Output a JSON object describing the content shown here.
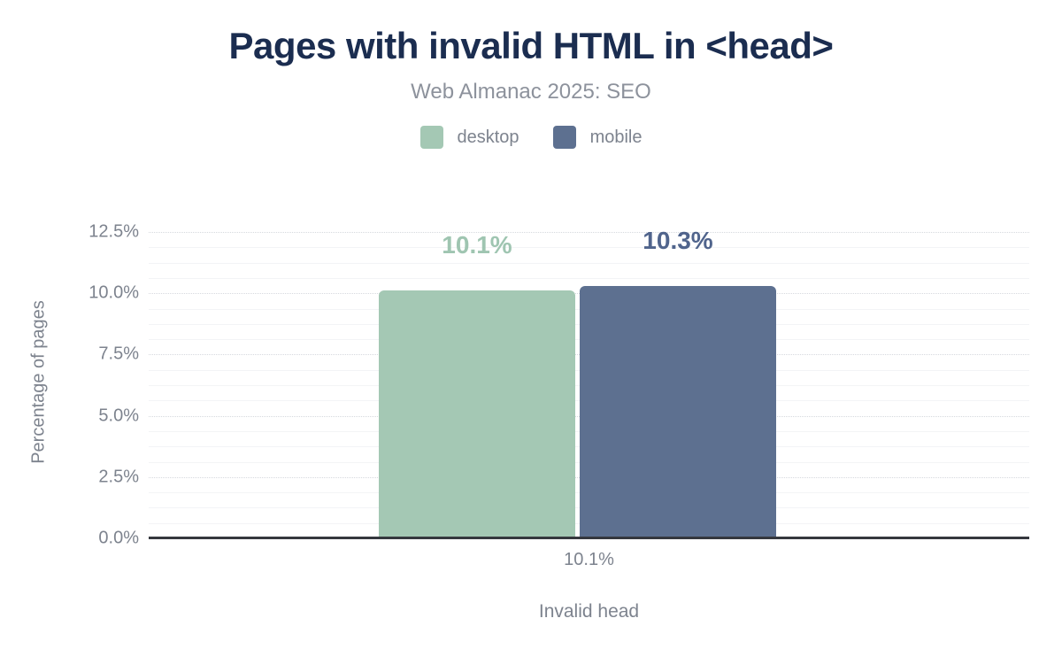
{
  "chart_data": {
    "type": "bar",
    "title": "Pages with invalid HTML in <head>",
    "subtitle": "Web Almanac 2025: SEO",
    "categories": [
      "Invalid head"
    ],
    "series": [
      {
        "name": "desktop",
        "values": [
          10.1
        ],
        "value_labels": [
          "10.1%"
        ],
        "color": "#a4c8b4",
        "label_color": "#9fc5b1"
      },
      {
        "name": "mobile",
        "values": [
          10.3
        ],
        "value_labels": [
          "10.3%"
        ],
        "color": "#5d7090",
        "label_color": "#50648c"
      }
    ],
    "xlabel": "Invalid head",
    "ylabel": "Percentage of pages",
    "ylim": [
      0,
      12.5
    ],
    "ytick_step": 2.5,
    "minor_step": 0.625,
    "yticks": [
      "0.0%",
      "2.5%",
      "5.0%",
      "7.5%",
      "10.0%",
      "12.5%"
    ],
    "x_tick_label": "10.1%",
    "legend_position": "top",
    "grid": "on",
    "colors": {
      "title": "#1b2d50",
      "muted_text": "#7d838e",
      "subtitle_text": "#8d929c",
      "grid_major": "#d6d9de",
      "grid_minor": "#f3f4f6",
      "axis_line": "#35383e",
      "background": "#ffffff"
    }
  }
}
